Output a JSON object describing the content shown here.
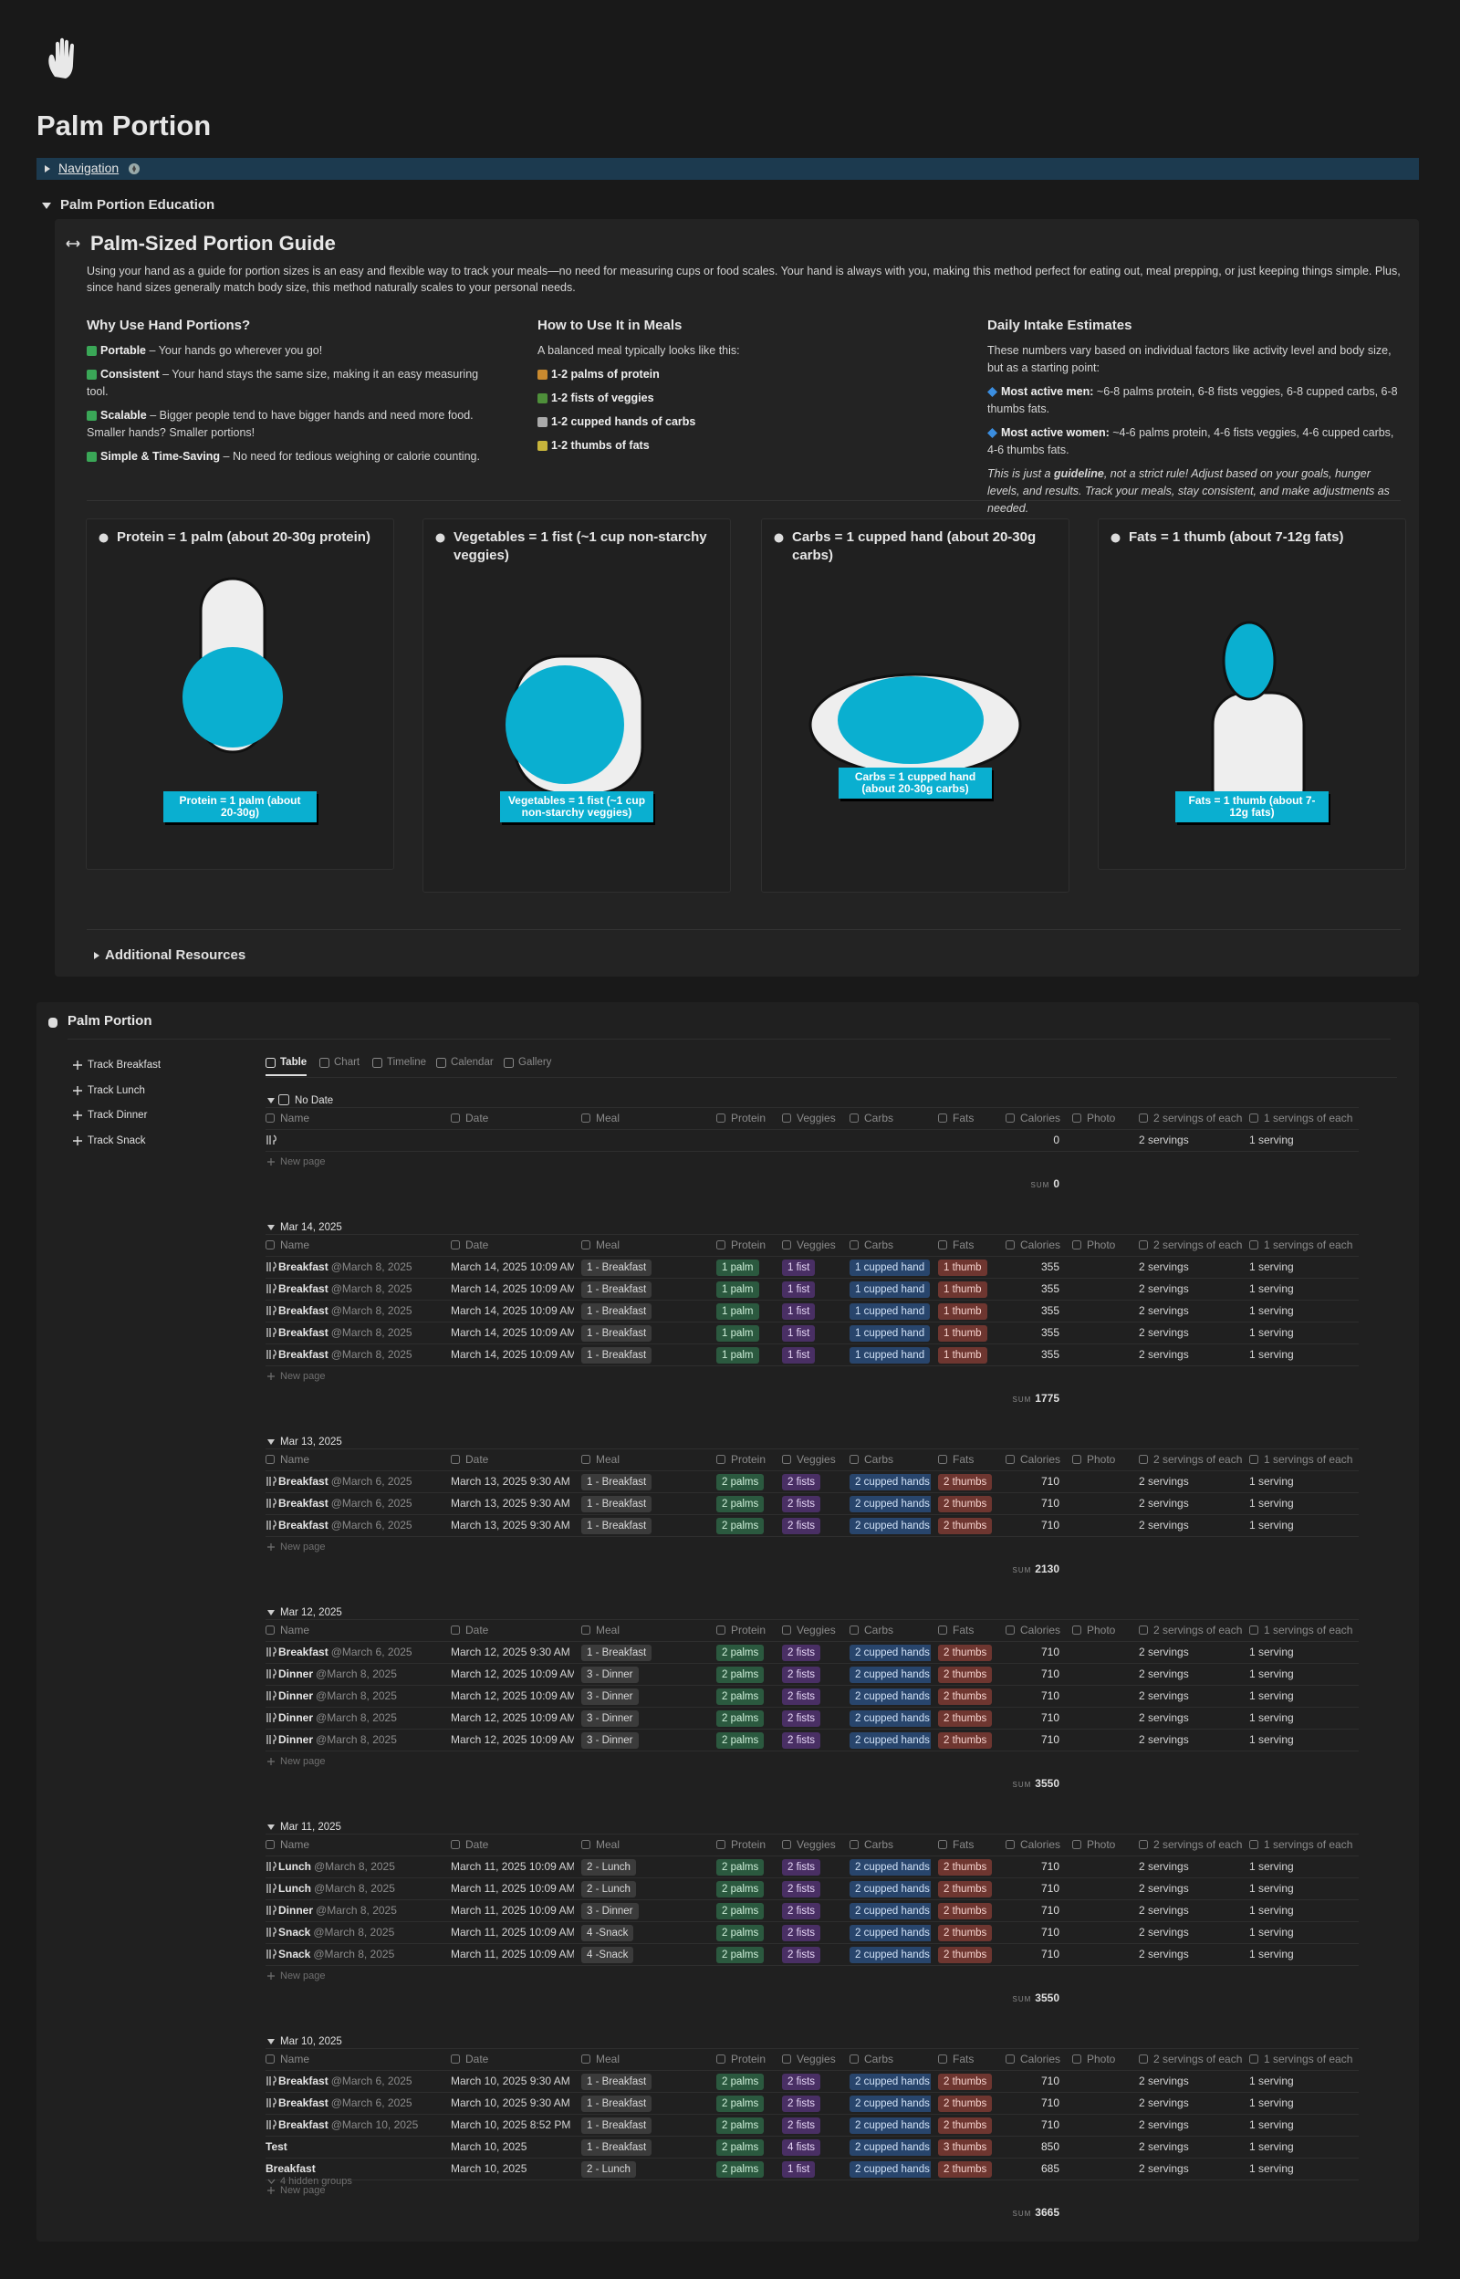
{
  "header": {
    "title": "Palm Portion"
  },
  "navigation": {
    "label": "Navigation"
  },
  "education": {
    "toggle": "Palm Portion Education",
    "guide_title": "Palm-Sized Portion Guide",
    "intro": "Using your hand as a guide for portion sizes is an easy and flexible way to track your meals—no need for measuring cups or food scales. Your hand is always with you, making this method perfect for eating out, meal prepping, or just keeping things simple. Plus, since hand sizes generally match body size, this method naturally scales to your personal needs.",
    "columns": [
      {
        "heading": "Why Use Hand Portions?",
        "items": [
          {
            "bold": "Portable",
            "text": " – Your hands go wherever you go!"
          },
          {
            "bold": "Consistent",
            "text": " – Your hand stays the same size, making it an easy measuring tool."
          },
          {
            "bold": "Scalable",
            "text": " – Bigger people tend to have bigger hands and need more food. Smaller hands? Smaller portions!"
          },
          {
            "bold": "Simple & Time-Saving",
            "text": " – No need for tedious weighing or calorie counting."
          }
        ]
      },
      {
        "heading": "How to Use It in Meals",
        "intro": "A balanced meal typically looks like this:",
        "items": [
          {
            "bold": "1-2 palms of protein"
          },
          {
            "bold": "1-2 fists of veggies"
          },
          {
            "bold": "1-2 cupped hands of carbs"
          },
          {
            "bold": "1-2 thumbs of fats"
          }
        ]
      },
      {
        "heading": "Daily Intake Estimates",
        "intro": "These numbers vary based on individual factors like activity level and body size, but as a starting point:",
        "items": [
          {
            "bold": "Most active men:",
            "text": " ~6-8 palms protein, 6-8 fists veggies, 6-8 cupped carbs, 6-8 thumbs fats."
          },
          {
            "bold": "Most active women:",
            "text": " ~4-6 palms protein, 4-6 fists veggies, 4-6 cupped carbs, 4-6 thumbs fats."
          }
        ],
        "note": {
          "pre": "This is just a ",
          "bold": "guideline",
          "post": ", not a strict rule! Adjust based on your goals, hunger levels, and results. Track your meals, stay consistent, and make adjustments as needed."
        }
      }
    ],
    "cards": [
      {
        "title": "Protein = 1 palm (about 20-30g protein)",
        "caption": "Protein = 1 palm (about 20-30g)"
      },
      {
        "title": "Vegetables = 1 fist (~1 cup non-starchy veggies)",
        "caption": "Vegetables = 1 fist (~1 cup non-starchy veggies)"
      },
      {
        "title": "Carbs = 1 cupped hand (about 20-30g carbs)",
        "caption": "Carbs = 1 cupped hand (about 20-30g carbs)"
      },
      {
        "title": "Fats = 1 thumb (about 7-12g fats)",
        "caption": "Fats = 1 thumb (about 7-12g fats)"
      }
    ],
    "additional": "Additional Resources"
  },
  "database": {
    "title": "Palm Portion",
    "buttons": [
      "Track Breakfast",
      "Track Lunch",
      "Track Dinner",
      "Track Snack"
    ],
    "views": [
      "Table",
      "Chart",
      "Timeline",
      "Calendar",
      "Gallery"
    ],
    "columns": [
      "Name",
      "Date",
      "Meal",
      "Protein",
      "Veggies",
      "Carbs",
      "Fats",
      "Calories",
      "Photo",
      "2 servings of each",
      "1 servings of each"
    ],
    "new_page": "New page",
    "sum_label": "SUM",
    "groups": [
      {
        "label": "No Date",
        "sum": 0,
        "rows": [
          {
            "icon": true,
            "calories": 0,
            "servings_2": "2 servings",
            "servings_1": "1 serving"
          }
        ]
      },
      {
        "label": "Mar 14, 2025",
        "sum": 1775,
        "rows": [
          {
            "icon": true,
            "name": "Breakfast",
            "mention": "@March 8, 2025",
            "date": "March 14, 2025 10:09 AM",
            "meal": "1 - Breakfast",
            "protein": "1 palm",
            "veggies": "1 fist",
            "carbs": "1 cupped hand",
            "fats": "1 thumb",
            "calories": 355,
            "servings_2": "2 servings",
            "servings_1": "1 serving"
          },
          {
            "icon": true,
            "name": "Breakfast",
            "mention": "@March 8, 2025",
            "date": "March 14, 2025 10:09 AM",
            "meal": "1 - Breakfast",
            "protein": "1 palm",
            "veggies": "1 fist",
            "carbs": "1 cupped hand",
            "fats": "1 thumb",
            "calories": 355,
            "servings_2": "2 servings",
            "servings_1": "1 serving"
          },
          {
            "icon": true,
            "name": "Breakfast",
            "mention": "@March 8, 2025",
            "date": "March 14, 2025 10:09 AM",
            "meal": "1 - Breakfast",
            "protein": "1 palm",
            "veggies": "1 fist",
            "carbs": "1 cupped hand",
            "fats": "1 thumb",
            "calories": 355,
            "servings_2": "2 servings",
            "servings_1": "1 serving"
          },
          {
            "icon": true,
            "name": "Breakfast",
            "mention": "@March 8, 2025",
            "date": "March 14, 2025 10:09 AM",
            "meal": "1 - Breakfast",
            "protein": "1 palm",
            "veggies": "1 fist",
            "carbs": "1 cupped hand",
            "fats": "1 thumb",
            "calories": 355,
            "servings_2": "2 servings",
            "servings_1": "1 serving"
          },
          {
            "icon": true,
            "name": "Breakfast",
            "mention": "@March 8, 2025",
            "date": "March 14, 2025 10:09 AM",
            "meal": "1 - Breakfast",
            "protein": "1 palm",
            "veggies": "1 fist",
            "carbs": "1 cupped hand",
            "fats": "1 thumb",
            "calories": 355,
            "servings_2": "2 servings",
            "servings_1": "1 serving"
          }
        ]
      },
      {
        "label": "Mar 13, 2025",
        "sum": 2130,
        "rows": [
          {
            "icon": true,
            "name": "Breakfast",
            "mention": "@March 6, 2025",
            "date": "March 13, 2025 9:30 AM",
            "meal": "1 - Breakfast",
            "protein": "2 palms",
            "veggies": "2 fists",
            "carbs": "2 cupped hands",
            "fats": "2 thumbs",
            "calories": 710,
            "servings_2": "2 servings",
            "servings_1": "1 serving"
          },
          {
            "icon": true,
            "name": "Breakfast",
            "mention": "@March 6, 2025",
            "date": "March 13, 2025 9:30 AM",
            "meal": "1 - Breakfast",
            "protein": "2 palms",
            "veggies": "2 fists",
            "carbs": "2 cupped hands",
            "fats": "2 thumbs",
            "calories": 710,
            "servings_2": "2 servings",
            "servings_1": "1 serving"
          },
          {
            "icon": true,
            "name": "Breakfast",
            "mention": "@March 6, 2025",
            "date": "March 13, 2025 9:30 AM",
            "meal": "1 - Breakfast",
            "protein": "2 palms",
            "veggies": "2 fists",
            "carbs": "2 cupped hands",
            "fats": "2 thumbs",
            "calories": 710,
            "servings_2": "2 servings",
            "servings_1": "1 serving"
          }
        ]
      },
      {
        "label": "Mar 12, 2025",
        "sum": 3550,
        "rows": [
          {
            "icon": true,
            "name": "Breakfast",
            "mention": "@March 6, 2025",
            "date": "March 12, 2025 9:30 AM",
            "meal": "1 - Breakfast",
            "protein": "2 palms",
            "veggies": "2 fists",
            "carbs": "2 cupped hands",
            "fats": "2 thumbs",
            "calories": 710,
            "servings_2": "2 servings",
            "servings_1": "1 serving"
          },
          {
            "icon": true,
            "name": "Dinner",
            "mention": "@March 8, 2025",
            "date": "March 12, 2025 10:09 AM",
            "meal": "3 - Dinner",
            "protein": "2 palms",
            "veggies": "2 fists",
            "carbs": "2 cupped hands",
            "fats": "2 thumbs",
            "calories": 710,
            "servings_2": "2 servings",
            "servings_1": "1 serving"
          },
          {
            "icon": true,
            "name": "Dinner",
            "mention": "@March 8, 2025",
            "date": "March 12, 2025 10:09 AM",
            "meal": "3 - Dinner",
            "protein": "2 palms",
            "veggies": "2 fists",
            "carbs": "2 cupped hands",
            "fats": "2 thumbs",
            "calories": 710,
            "servings_2": "2 servings",
            "servings_1": "1 serving"
          },
          {
            "icon": true,
            "name": "Dinner",
            "mention": "@March 8, 2025",
            "date": "March 12, 2025 10:09 AM",
            "meal": "3 - Dinner",
            "protein": "2 palms",
            "veggies": "2 fists",
            "carbs": "2 cupped hands",
            "fats": "2 thumbs",
            "calories": 710,
            "servings_2": "2 servings",
            "servings_1": "1 serving"
          },
          {
            "icon": true,
            "name": "Dinner",
            "mention": "@March 8, 2025",
            "date": "March 12, 2025 10:09 AM",
            "meal": "3 - Dinner",
            "protein": "2 palms",
            "veggies": "2 fists",
            "carbs": "2 cupped hands",
            "fats": "2 thumbs",
            "calories": 710,
            "servings_2": "2 servings",
            "servings_1": "1 serving"
          }
        ]
      },
      {
        "label": "Mar 11, 2025",
        "sum": 3550,
        "rows": [
          {
            "icon": true,
            "name": "Lunch",
            "mention": "@March 8, 2025",
            "date": "March 11, 2025 10:09 AM",
            "meal": "2 - Lunch",
            "protein": "2 palms",
            "veggies": "2 fists",
            "carbs": "2 cupped hands",
            "fats": "2 thumbs",
            "calories": 710,
            "servings_2": "2 servings",
            "servings_1": "1 serving"
          },
          {
            "icon": true,
            "name": "Lunch",
            "mention": "@March 8, 2025",
            "date": "March 11, 2025 10:09 AM",
            "meal": "2 - Lunch",
            "protein": "2 palms",
            "veggies": "2 fists",
            "carbs": "2 cupped hands",
            "fats": "2 thumbs",
            "calories": 710,
            "servings_2": "2 servings",
            "servings_1": "1 serving"
          },
          {
            "icon": true,
            "name": "Dinner",
            "mention": "@March 8, 2025",
            "date": "March 11, 2025 10:09 AM",
            "meal": "3 - Dinner",
            "protein": "2 palms",
            "veggies": "2 fists",
            "carbs": "2 cupped hands",
            "fats": "2 thumbs",
            "calories": 710,
            "servings_2": "2 servings",
            "servings_1": "1 serving"
          },
          {
            "icon": true,
            "name": "Snack",
            "mention": "@March 8, 2025",
            "date": "March 11, 2025 10:09 AM",
            "meal": "4 -Snack",
            "protein": "2 palms",
            "veggies": "2 fists",
            "carbs": "2 cupped hands",
            "fats": "2 thumbs",
            "calories": 710,
            "servings_2": "2 servings",
            "servings_1": "1 serving"
          },
          {
            "icon": true,
            "name": "Snack",
            "mention": "@March 8, 2025",
            "date": "March 11, 2025 10:09 AM",
            "meal": "4 -Snack",
            "protein": "2 palms",
            "veggies": "2 fists",
            "carbs": "2 cupped hands",
            "fats": "2 thumbs",
            "calories": 710,
            "servings_2": "2 servings",
            "servings_1": "1 serving"
          }
        ]
      },
      {
        "label": "Mar 10, 2025",
        "sum": 3665,
        "rows": [
          {
            "icon": true,
            "name": "Breakfast",
            "mention": "@March 6, 2025",
            "date": "March 10, 2025 9:30 AM",
            "meal": "1 - Breakfast",
            "protein": "2 palms",
            "veggies": "2 fists",
            "carbs": "2 cupped hands",
            "fats": "2 thumbs",
            "calories": 710,
            "servings_2": "2 servings",
            "servings_1": "1 serving"
          },
          {
            "icon": true,
            "name": "Breakfast",
            "mention": "@March 6, 2025",
            "date": "March 10, 2025 9:30 AM",
            "meal": "1 - Breakfast",
            "protein": "2 palms",
            "veggies": "2 fists",
            "carbs": "2 cupped hands",
            "fats": "2 thumbs",
            "calories": 710,
            "servings_2": "2 servings",
            "servings_1": "1 serving"
          },
          {
            "icon": true,
            "name": "Breakfast",
            "mention": "@March 10, 2025",
            "date": "March 10, 2025 8:52 PM",
            "meal": "1 - Breakfast",
            "protein": "2 palms",
            "veggies": "2 fists",
            "carbs": "2 cupped hands",
            "fats": "2 thumbs",
            "calories": 710,
            "servings_2": "2 servings",
            "servings_1": "1 serving"
          },
          {
            "name": "Test",
            "date": "March 10, 2025",
            "meal": "1 - Breakfast",
            "protein": "2 palms",
            "veggies": "4 fists",
            "carbs": "2 cupped hands",
            "fats": "3 thumbs",
            "calories": 850,
            "servings_2": "2 servings",
            "servings_1": "1 serving"
          },
          {
            "name": "Breakfast",
            "date": "March 10, 2025",
            "meal": "2 - Lunch",
            "protein": "2 palms",
            "veggies": "1 fist",
            "carbs": "2 cupped hands",
            "fats": "2 thumbs",
            "calories": 685,
            "servings_2": "2 servings",
            "servings_1": "1 serving"
          }
        ]
      }
    ],
    "hidden_groups": "4 hidden groups"
  }
}
